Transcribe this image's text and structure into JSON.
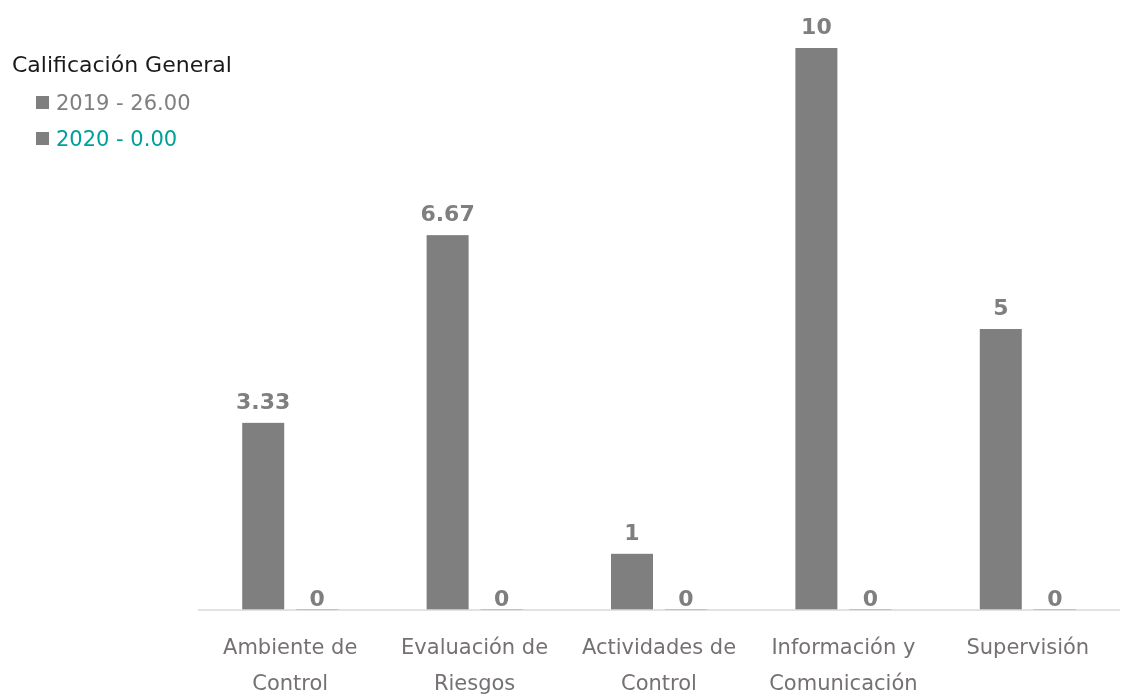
{
  "chart_data": {
    "type": "bar",
    "legend_title": "Calificación General",
    "categories": [
      "Ambiente de Control",
      "Evaluación de Riesgos",
      "Actividades de Control",
      "Información y Comunicación",
      "Supervisión"
    ],
    "series": [
      {
        "name": "2019 - 26.00",
        "color": "#7f7f7f",
        "values": [
          3.33,
          6.67,
          1,
          10,
          5
        ]
      },
      {
        "name": "2020 - 0.00",
        "color": "#7f7f7f",
        "values": [
          0,
          0,
          0,
          0,
          0
        ]
      }
    ],
    "data_labels": true,
    "legend": "top left"
  }
}
